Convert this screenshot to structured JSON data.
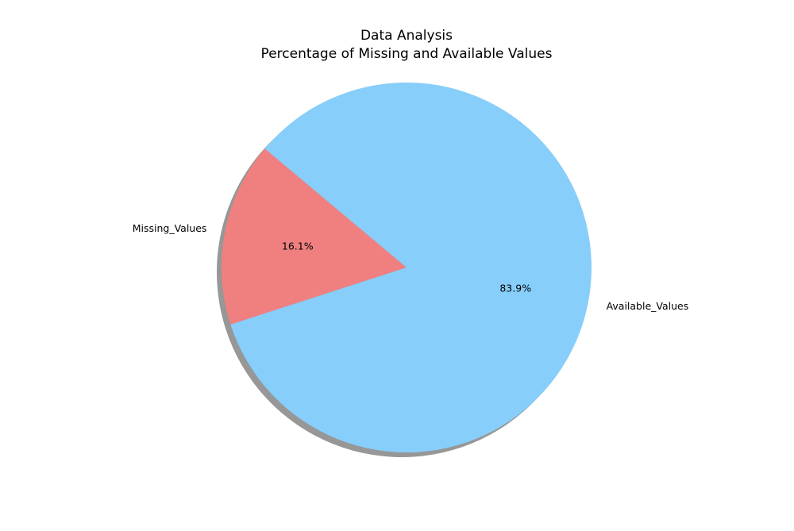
{
  "chart_data": {
    "type": "pie",
    "title_lines": [
      "Data Analysis",
      "Percentage of Missing and Available Values"
    ],
    "categories": [
      "Missing_Values",
      "Available_Values"
    ],
    "values": [
      16.1,
      83.9
    ],
    "percent_labels": [
      "16.1%",
      "83.9%"
    ],
    "colors": [
      "#f08080",
      "#87cefa"
    ],
    "start_angle_deg": 140,
    "shadow": true,
    "legend": "none"
  }
}
